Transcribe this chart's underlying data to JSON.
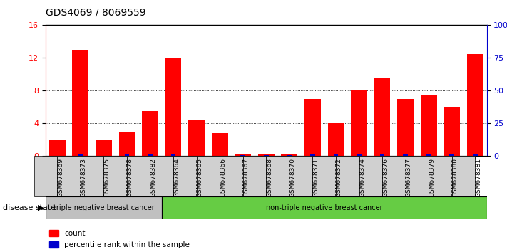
{
  "title": "GDS4069 / 8069559",
  "samples": [
    "GSM678369",
    "GSM678373",
    "GSM678375",
    "GSM678378",
    "GSM678382",
    "GSM678364",
    "GSM678365",
    "GSM678366",
    "GSM678367",
    "GSM678368",
    "GSM678370",
    "GSM678371",
    "GSM678372",
    "GSM678374",
    "GSM678376",
    "GSM678377",
    "GSM678379",
    "GSM678380",
    "GSM678381"
  ],
  "counts": [
    2.0,
    13.0,
    2.0,
    3.0,
    5.5,
    12.0,
    4.5,
    2.8,
    0.3,
    0.3,
    0.3,
    7.0,
    4.0,
    8.0,
    9.5,
    7.0,
    7.5,
    6.0,
    12.5
  ],
  "percentiles": [
    0.5,
    1.5,
    0.5,
    1.5,
    1.5,
    1.5,
    0.5,
    0.5,
    0.8,
    0.8,
    0.8,
    1.5,
    1.5,
    1.5,
    1.5,
    1.5,
    1.5,
    1.5,
    1.5
  ],
  "group1_count": 5,
  "group2_count": 14,
  "group1_label": "triple negative breast cancer",
  "group2_label": "non-triple negative breast cancer",
  "disease_state_label": "disease state",
  "count_label": "count",
  "percentile_label": "percentile rank within the sample",
  "ylim_left": [
    0,
    16
  ],
  "ylim_right": [
    0,
    100
  ],
  "yticks_left": [
    0,
    4,
    8,
    12,
    16
  ],
  "yticks_right": [
    0,
    25,
    50,
    75,
    100
  ],
  "bar_color_red": "#FF0000",
  "bar_color_blue": "#0000CC",
  "group1_bg": "#C0C0C0",
  "group2_bg": "#66CC44",
  "tick_bg": "#D0D0D0",
  "bar_width": 0.35,
  "figsize": [
    7.11,
    3.54
  ],
  "dpi": 100
}
